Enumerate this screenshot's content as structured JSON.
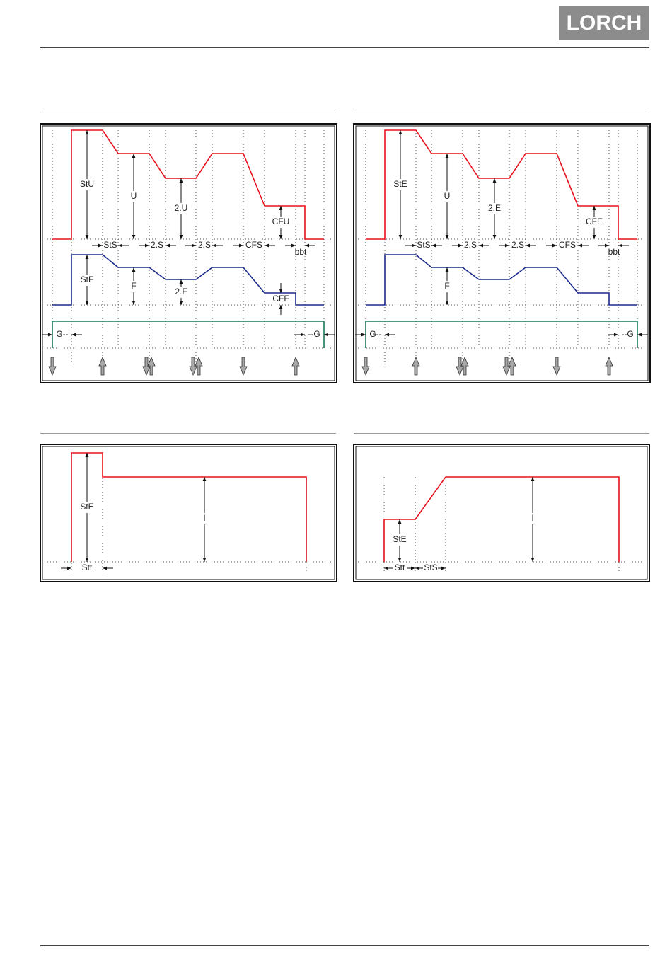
{
  "header": {
    "logo_text": "LORCH"
  },
  "diagrams": {
    "top_left": {
      "labels": {
        "stu": "StU",
        "u": "U",
        "u2": "2.U",
        "cfu": "CFU",
        "sts": "StS",
        "s2a": "2.S",
        "s2b": "2.S",
        "cfs": "CFS",
        "bbt": "bbt",
        "stf": "StF",
        "f": "F",
        "f2": "2.F",
        "cff": "CFF",
        "g_start": "G--",
        "g_end": "--G"
      },
      "colors": {
        "voltage": "#e8101c",
        "wire_feed": "#1c2a8c",
        "gas": "#1a7a5a"
      }
    },
    "top_right": {
      "labels": {
        "ste": "StE",
        "u": "U",
        "e2": "2.E",
        "cfe": "CFE",
        "sts": "StS",
        "s2a": "2.S",
        "s2b": "2.S",
        "cfs": "CFS",
        "bbt": "bbt",
        "f": "F",
        "g_start": "G--",
        "g_end": "--G"
      }
    },
    "bottom_left": {
      "labels": {
        "ste": "StE",
        "i": "I",
        "stt": "Stt"
      }
    },
    "bottom_right": {
      "labels": {
        "ste": "StE",
        "i": "I",
        "stt": "Stt",
        "sts": "StS"
      }
    }
  }
}
